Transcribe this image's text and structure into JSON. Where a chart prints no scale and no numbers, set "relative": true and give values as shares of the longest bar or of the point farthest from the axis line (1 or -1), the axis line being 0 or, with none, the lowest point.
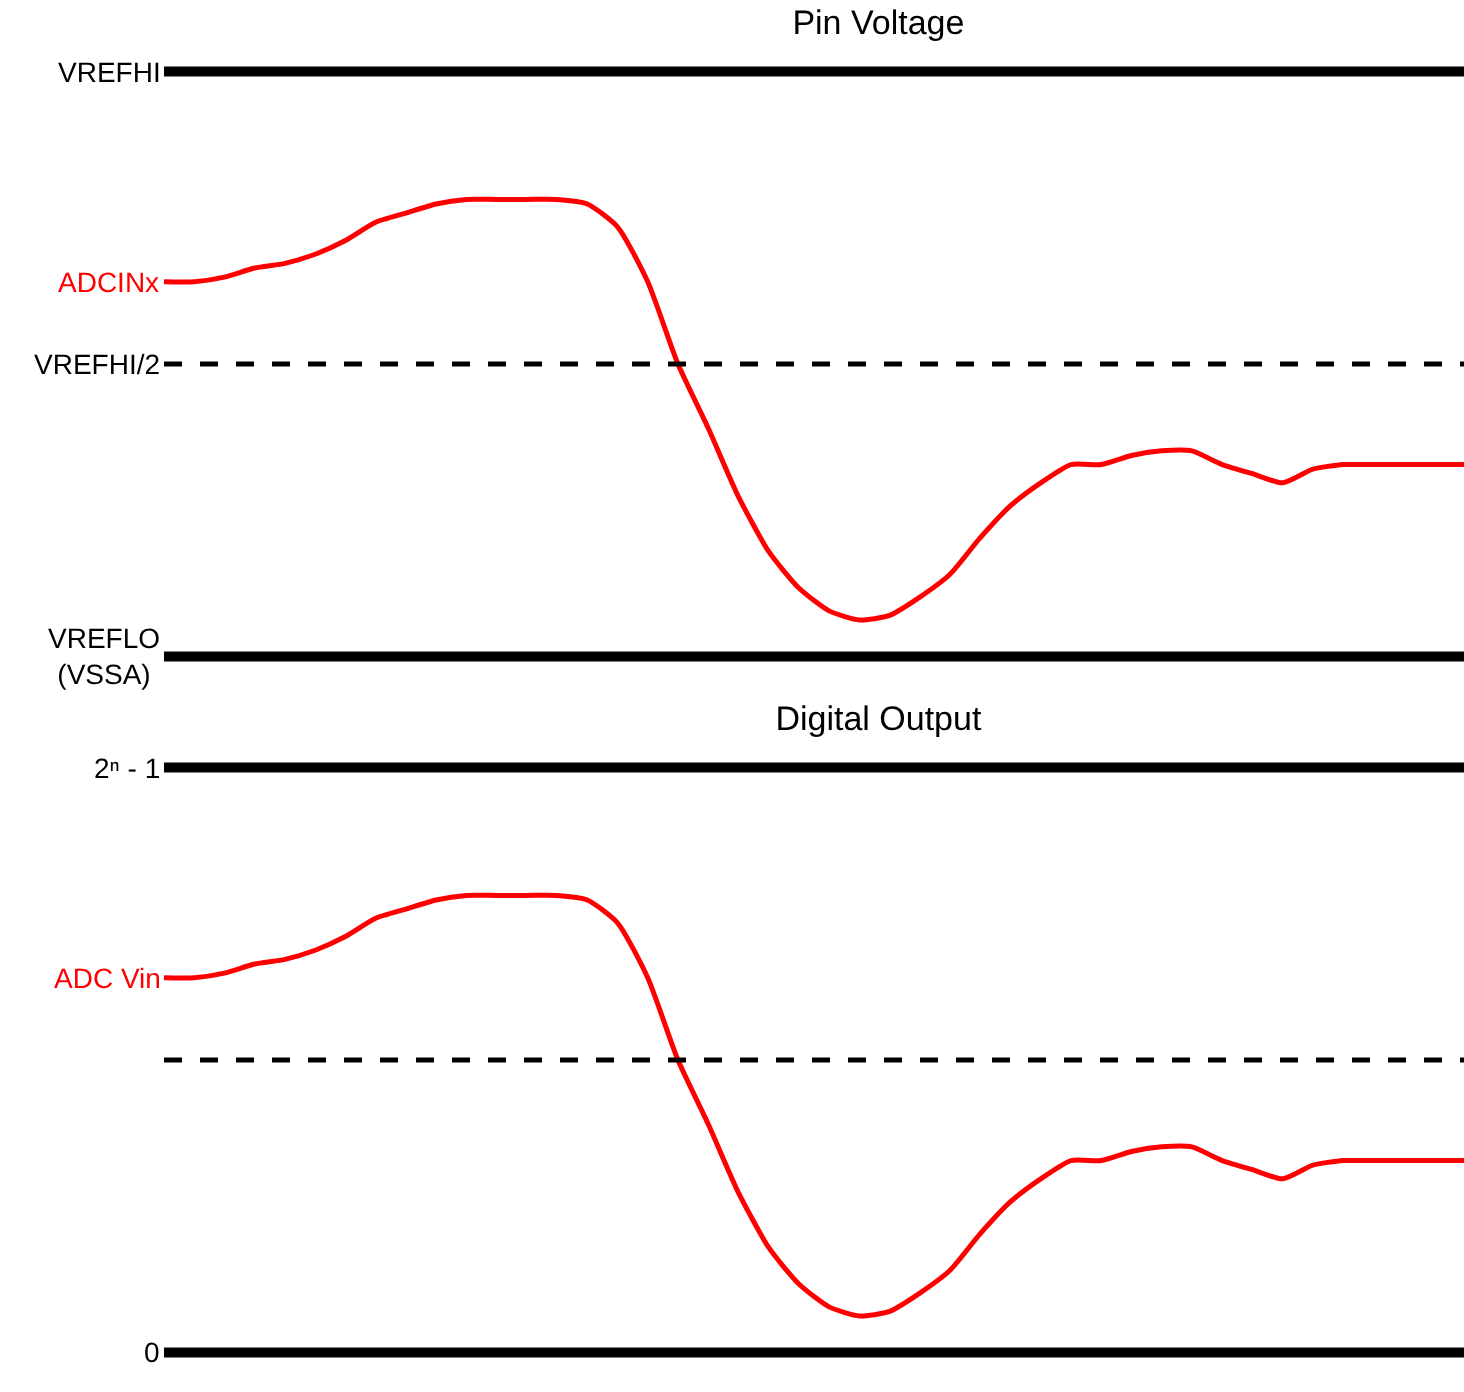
{
  "chart_data": [
    {
      "type": "line",
      "title": "Pin Voltage",
      "relative": true,
      "categories": [
        null,
        null,
        null,
        null,
        null,
        null,
        null,
        null,
        null,
        null,
        null,
        null,
        null,
        null,
        null,
        null,
        null,
        null,
        null,
        null,
        null,
        null,
        null,
        null,
        null,
        null,
        null,
        null,
        null,
        null,
        null,
        null,
        null,
        null,
        null,
        null,
        null,
        null,
        null,
        null,
        null,
        null,
        null,
        null
      ],
      "series": [
        {
          "name": "ADCINx",
          "color": "#ff0000",
          "values": [
            0.82,
            0.82,
            0.83,
            0.85,
            0.86,
            0.88,
            0.91,
            0.95,
            0.97,
            0.99,
            1,
            1,
            1,
            1,
            0.99,
            0.94,
            0.82,
            0.64,
            0.5,
            0.35,
            0.23,
            0.15,
            0.1,
            0.08,
            0.09,
            0.13,
            0.18,
            0.26,
            0.33,
            0.38,
            0.42,
            0.42,
            0.44,
            0.45,
            0.45,
            0.42,
            0.4,
            0.38,
            0.41,
            0.42,
            0.42,
            0.42,
            0.42,
            0.42
          ]
        }
      ],
      "ref_lines": [
        {
          "axis": "y",
          "value": 1.28,
          "label": "VREFHI",
          "line_style": "solid",
          "color": "#000000"
        },
        {
          "axis": "y",
          "value": 0.64,
          "label": "VREFHI/2",
          "line_style": "dashed",
          "color": "#000000"
        },
        {
          "axis": "y",
          "value": 0,
          "label": "VREFLO\n(VSSA)",
          "line_style": "solid",
          "color": "#000000"
        }
      ],
      "legend": false,
      "line_style": "solid",
      "marker": "none"
    },
    {
      "type": "line",
      "title": "Digital Output",
      "relative": true,
      "categories": [
        null,
        null,
        null,
        null,
        null,
        null,
        null,
        null,
        null,
        null,
        null,
        null,
        null,
        null,
        null,
        null,
        null,
        null,
        null,
        null,
        null,
        null,
        null,
        null,
        null,
        null,
        null,
        null,
        null,
        null,
        null,
        null,
        null,
        null,
        null,
        null,
        null,
        null,
        null,
        null,
        null,
        null,
        null,
        null
      ],
      "series": [
        {
          "name": "ADC Vin",
          "color": "#ff0000",
          "values": [
            0.82,
            0.82,
            0.83,
            0.85,
            0.86,
            0.88,
            0.91,
            0.95,
            0.97,
            0.99,
            1,
            1,
            1,
            1,
            0.99,
            0.94,
            0.82,
            0.64,
            0.5,
            0.35,
            0.23,
            0.15,
            0.1,
            0.08,
            0.09,
            0.13,
            0.18,
            0.26,
            0.33,
            0.38,
            0.42,
            0.42,
            0.44,
            0.45,
            0.45,
            0.42,
            0.4,
            0.38,
            0.41,
            0.42,
            0.42,
            0.42,
            0.42,
            0.42
          ]
        }
      ],
      "ref_lines": [
        {
          "axis": "y",
          "value": 1.28,
          "label": "2ⁿ - 1",
          "line_style": "solid",
          "color": "#000000"
        },
        {
          "axis": "y",
          "value": 0.64,
          "label": null,
          "line_style": "dashed",
          "color": "#000000"
        },
        {
          "axis": "y",
          "value": 0,
          "label": "0",
          "line_style": "solid",
          "color": "#000000"
        }
      ],
      "legend": false,
      "line_style": "solid",
      "marker": "none"
    }
  ]
}
